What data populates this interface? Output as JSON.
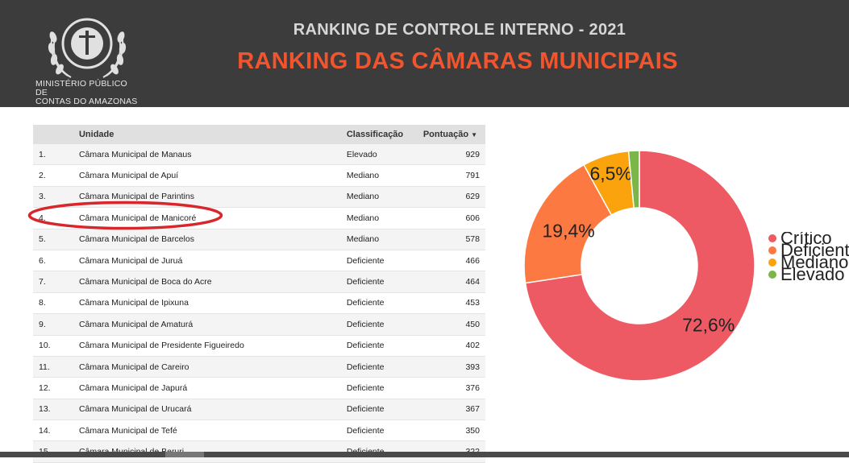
{
  "header": {
    "logo_text_line1": "MINISTÉRIO PÚBLICO DE",
    "logo_text_line2": "CONTAS DO AMAZONAS",
    "title": "RANKING DE CONTROLE INTERNO - 2021",
    "subtitle": "RANKING DAS CÂMARAS MUNICIPAIS"
  },
  "table": {
    "columns": [
      "",
      "Unidade",
      "Classificação",
      "Pontuação"
    ],
    "sort_column": "Pontuação",
    "rows": [
      {
        "num": "1.",
        "unit": "Câmara Municipal de Manaus",
        "class": "Elevado",
        "score": "929"
      },
      {
        "num": "2.",
        "unit": "Câmara Municipal de Apuí",
        "class": "Mediano",
        "score": "791"
      },
      {
        "num": "3.",
        "unit": "Câmara Municipal de Parintins",
        "class": "Mediano",
        "score": "629"
      },
      {
        "num": "4.",
        "unit": "Câmara Municipal de Manicoré",
        "class": "Mediano",
        "score": "606"
      },
      {
        "num": "5.",
        "unit": "Câmara Municipal de Barcelos",
        "class": "Mediano",
        "score": "578"
      },
      {
        "num": "6.",
        "unit": "Câmara Municipal de Juruá",
        "class": "Deficiente",
        "score": "466"
      },
      {
        "num": "7.",
        "unit": "Câmara Municipal de Boca do Acre",
        "class": "Deficiente",
        "score": "464"
      },
      {
        "num": "8.",
        "unit": "Câmara Municipal de Ipixuna",
        "class": "Deficiente",
        "score": "453"
      },
      {
        "num": "9.",
        "unit": "Câmara Municipal de Amaturá",
        "class": "Deficiente",
        "score": "450"
      },
      {
        "num": "10.",
        "unit": "Câmara Municipal de Presidente Figueiredo",
        "class": "Deficiente",
        "score": "402"
      },
      {
        "num": "11.",
        "unit": "Câmara Municipal de Careiro",
        "class": "Deficiente",
        "score": "393"
      },
      {
        "num": "12.",
        "unit": "Câmara Municipal de Japurá",
        "class": "Deficiente",
        "score": "376"
      },
      {
        "num": "13.",
        "unit": "Câmara Municipal de Urucará",
        "class": "Deficiente",
        "score": "367"
      },
      {
        "num": "14.",
        "unit": "Câmara Municipal de Tefé",
        "class": "Deficiente",
        "score": "350"
      },
      {
        "num": "15.",
        "unit": "Câmara Municipal de Beruri",
        "class": "Deficiente",
        "score": "322"
      }
    ],
    "highlighted_row": "4."
  },
  "colors": {
    "header_bg": "#3c3c3c",
    "title_gray": "#d6d6d6",
    "title_orange": "#f2542d",
    "highlight_ellipse": "#d8262b"
  },
  "chart_data": {
    "type": "pie",
    "donut": true,
    "slices": [
      {
        "label": "Crítico",
        "value": 72.6,
        "display": "72,6%",
        "color": "#ee5a63"
      },
      {
        "label": "Deficiente",
        "value": 19.4,
        "display": "19,4%",
        "color": "#fd7942"
      },
      {
        "label": "Mediano",
        "value": 6.5,
        "display": "6,5%",
        "color": "#faa30c"
      },
      {
        "label": "Elevado",
        "value": 1.5,
        "display": "",
        "color": "#7ab648"
      }
    ],
    "legend_position": "right"
  }
}
